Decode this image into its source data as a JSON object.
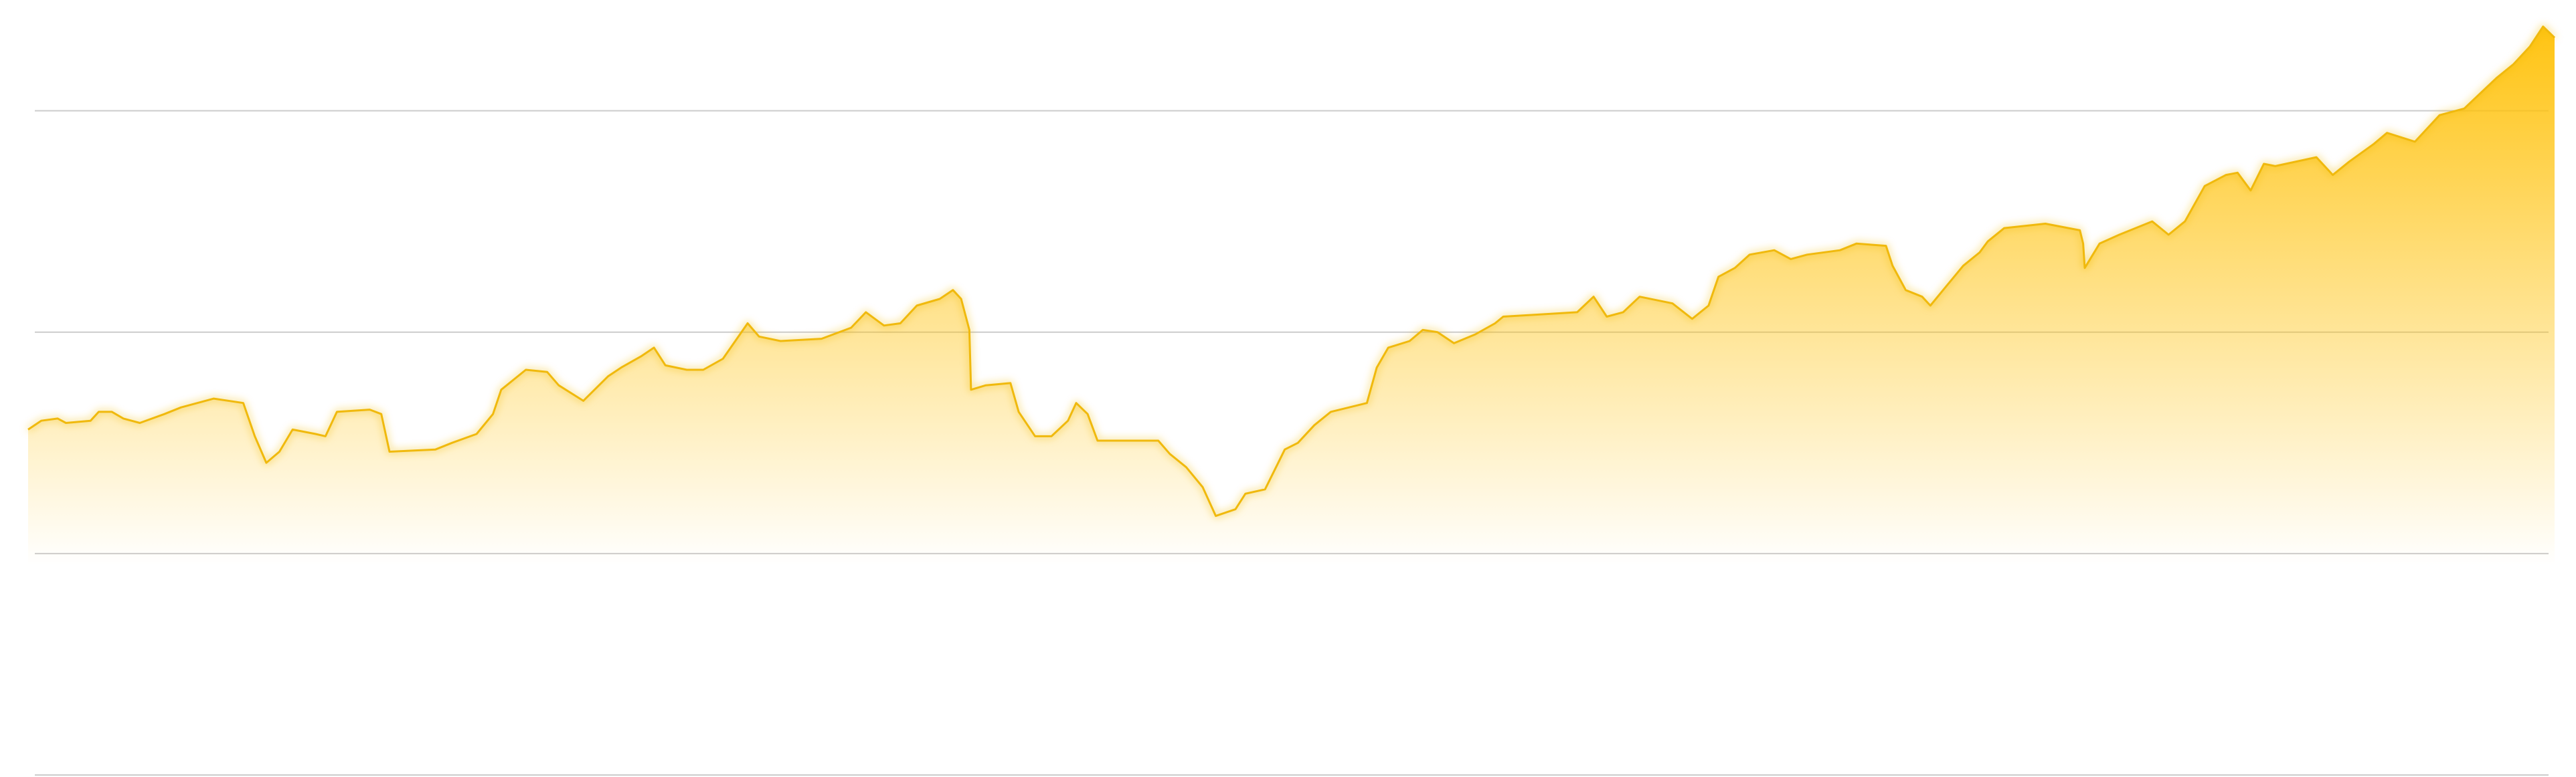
{
  "chart_data": {
    "type": "area",
    "x": [
      17,
      25,
      35,
      40,
      55,
      60,
      68,
      75,
      85,
      100,
      110,
      130,
      148,
      155,
      162,
      170,
      178,
      192,
      198,
      205,
      225,
      232,
      237,
      265,
      275,
      290,
      300,
      305,
      320,
      333,
      340,
      355,
      370,
      378,
      390,
      398,
      405,
      418,
      428,
      440,
      455,
      462,
      475,
      500,
      518,
      527,
      538,
      548,
      558,
      572,
      580,
      585,
      590,
      591,
      600,
      615,
      620,
      630,
      640,
      650,
      655,
      662,
      668,
      705,
      712,
      722,
      732,
      740,
      752,
      758,
      770,
      778,
      782,
      790,
      800,
      810,
      832,
      838,
      845,
      858,
      866,
      875,
      885,
      898,
      910,
      915,
      960,
      970,
      978,
      988,
      998,
      1018,
      1030,
      1040,
      1046,
      1056,
      1065,
      1080,
      1090,
      1100,
      1120,
      1130,
      1148,
      1152,
      1160,
      1170,
      1175,
      1185,
      1195,
      1205,
      1210,
      1220,
      1245,
      1266,
      1268,
      1269,
      1278,
      1290,
      1310,
      1320,
      1330,
      1342,
      1355,
      1362,
      1370,
      1378,
      1385,
      1410,
      1420,
      1430,
      1445,
      1453,
      1470,
      1485,
      1500,
      1510,
      1520,
      1530,
      1540,
      1548,
      1555
    ],
    "values": [
      1.56,
      1.6,
      1.61,
      1.59,
      1.6,
      1.64,
      1.64,
      1.61,
      1.59,
      1.63,
      1.66,
      1.7,
      1.68,
      1.53,
      1.41,
      1.46,
      1.56,
      1.54,
      1.53,
      1.64,
      1.65,
      1.63,
      1.46,
      1.47,
      1.5,
      1.54,
      1.63,
      1.74,
      1.83,
      1.82,
      1.76,
      1.69,
      1.8,
      1.84,
      1.89,
      1.93,
      1.85,
      1.83,
      1.83,
      1.88,
      2.04,
      1.98,
      1.96,
      1.97,
      2.02,
      2.09,
      2.03,
      2.04,
      2.12,
      2.15,
      2.19,
      2.15,
      2.01,
      1.74,
      1.76,
      1.77,
      1.64,
      1.53,
      1.53,
      1.6,
      1.68,
      1.63,
      1.51,
      1.51,
      1.45,
      1.39,
      1.3,
      1.17,
      1.2,
      1.27,
      1.29,
      1.41,
      1.47,
      1.5,
      1.58,
      1.64,
      1.68,
      1.84,
      1.93,
      1.96,
      2.01,
      2,
      1.95,
      1.99,
      2.04,
      2.07,
      2.09,
      2.16,
      2.07,
      2.09,
      2.16,
      2.13,
      2.06,
      2.12,
      2.25,
      2.29,
      2.35,
      2.37,
      2.33,
      2.35,
      2.37,
      2.4,
      2.39,
      2.3,
      2.19,
      2.16,
      2.12,
      2.21,
      2.3,
      2.36,
      2.41,
      2.47,
      2.49,
      2.46,
      2.4,
      2.29,
      2.4,
      2.44,
      2.5,
      2.44,
      2.5,
      2.66,
      2.71,
      2.72,
      2.64,
      2.76,
      2.75,
      2.79,
      2.71,
      2.77,
      2.85,
      2.9,
      2.86,
      2.98,
      3.01,
      3.08,
      3.15,
      3.21,
      3.29,
      3.38,
      3.33
    ],
    "color": "#ffc107",
    "xlim": [
      17,
      1555
    ],
    "ylim": [
      0,
      3.5
    ],
    "yticks": [
      0,
      1,
      2,
      3
    ],
    "grid": true
  }
}
